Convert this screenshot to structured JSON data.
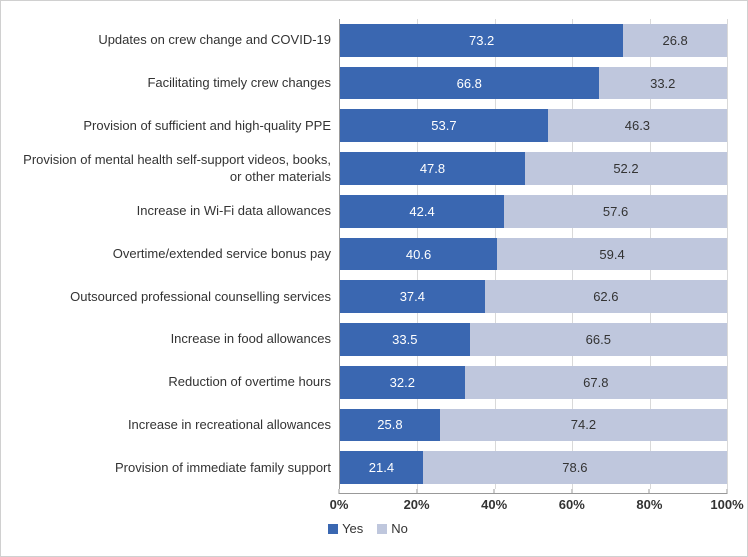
{
  "chart": {
    "type": "stacked-bar-horizontal",
    "xlim": [
      0,
      100
    ],
    "xtick_step": 20,
    "xtick_labels": [
      "0%",
      "20%",
      "40%",
      "60%",
      "80%",
      "100%"
    ],
    "background_color": "#ffffff",
    "grid_color": "#d9d9d9",
    "axis_color": "#999999",
    "label_fontsize": 13,
    "value_fontsize": 13,
    "tick_fontsize": 13,
    "series": [
      {
        "key": "yes",
        "label": "Yes",
        "color": "#3a67b1",
        "text_color": "#ffffff"
      },
      {
        "key": "no",
        "label": "No",
        "color": "#bfc7dd",
        "text_color": "#333333"
      }
    ],
    "rows": [
      {
        "label": "Updates on crew change and COVID-19",
        "yes": 73.2,
        "no": 26.8
      },
      {
        "label": "Facilitating timely crew changes",
        "yes": 66.8,
        "no": 33.2
      },
      {
        "label": "Provision of sufficient and high-quality PPE",
        "yes": 53.7,
        "no": 46.3
      },
      {
        "label": "Provision of mental health self-support videos, books, or other materials",
        "yes": 47.8,
        "no": 52.2
      },
      {
        "label": "Increase in Wi-Fi data allowances",
        "yes": 42.4,
        "no": 57.6
      },
      {
        "label": "Overtime/extended service bonus pay",
        "yes": 40.6,
        "no": 59.4
      },
      {
        "label": "Outsourced professional counselling services",
        "yes": 37.4,
        "no": 62.6
      },
      {
        "label": "Increase in food allowances",
        "yes": 33.5,
        "no": 66.5
      },
      {
        "label": "Reduction of overtime hours",
        "yes": 32.2,
        "no": 67.8
      },
      {
        "label": "Increase in recreational allowances",
        "yes": 25.8,
        "no": 74.2
      },
      {
        "label": "Provision of immediate family support",
        "yes": 21.4,
        "no": 78.6
      }
    ]
  }
}
